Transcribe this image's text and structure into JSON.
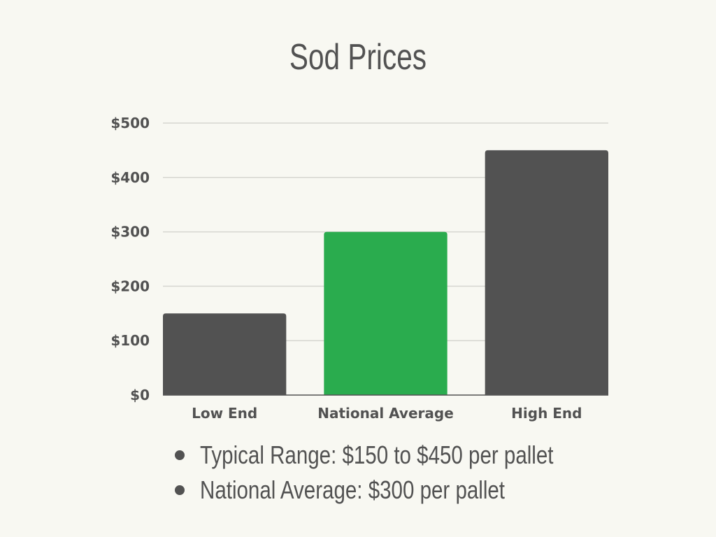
{
  "chart_data": {
    "type": "bar",
    "title": "Sod Prices",
    "categories": [
      "Low End",
      "National Average",
      "High End"
    ],
    "values": [
      150,
      300,
      450
    ],
    "colors": [
      "#525252",
      "#2aac4e",
      "#525252"
    ],
    "ylim": [
      0,
      500
    ],
    "yticks": [
      0,
      100,
      200,
      300,
      400,
      500
    ],
    "ytick_labels": [
      "$0",
      "$100",
      "$200",
      "$300",
      "$400",
      "$500"
    ],
    "grid": true,
    "xlabel": "",
    "ylabel": ""
  },
  "notes": [
    "Typical Range: $150 to $450 per pallet",
    "National Average: $300 per pallet"
  ]
}
